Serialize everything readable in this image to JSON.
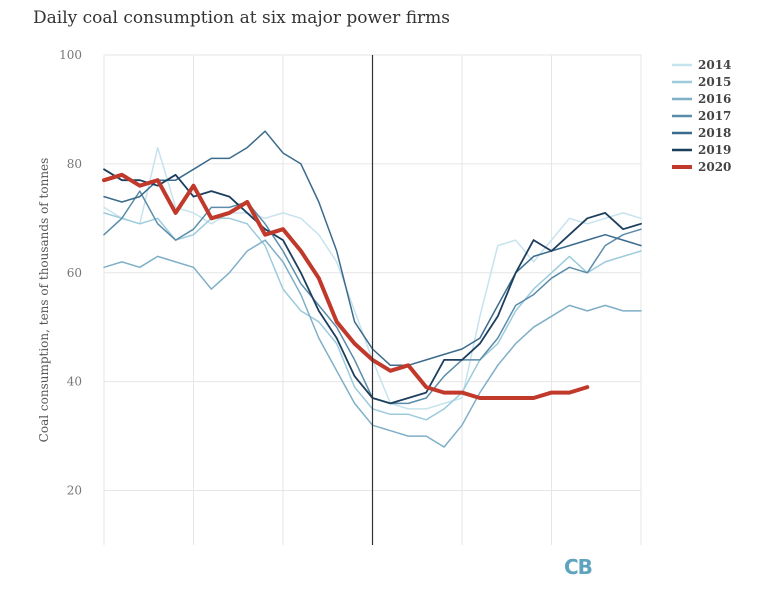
{
  "chart_data": {
    "type": "line",
    "title": "Daily coal consumption at six major power firms",
    "ylabel": "Coal consumption, tens of thousands of tonnes",
    "xlabel": "",
    "ylim": [
      10,
      100
    ],
    "yticks": [
      20,
      40,
      60,
      80,
      100
    ],
    "grid": true,
    "legend_position": "right",
    "xlim": [
      0,
      60
    ],
    "vertical_marker_x": 30,
    "series": [
      {
        "name": "2014",
        "color": "#c7e3ee",
        "width": 1.5,
        "x": [
          0,
          2,
          4,
          6,
          8,
          10,
          12,
          14,
          16,
          18,
          20,
          22,
          24,
          26,
          28,
          30,
          32,
          34,
          36,
          38,
          40,
          42,
          44,
          46,
          48,
          50,
          52,
          54,
          56,
          58,
          60
        ],
        "y": [
          72,
          70,
          69,
          83,
          72,
          71,
          69,
          71,
          71,
          70,
          71,
          70,
          67,
          62,
          53,
          44,
          36,
          35,
          35,
          36,
          37,
          52,
          65,
          66,
          62,
          66,
          70,
          69,
          70,
          71,
          70
        ]
      },
      {
        "name": "2015",
        "color": "#9ccbdc",
        "width": 1.5,
        "x": [
          0,
          2,
          4,
          6,
          8,
          10,
          12,
          14,
          16,
          18,
          20,
          22,
          24,
          26,
          28,
          30,
          32,
          34,
          36,
          38,
          40,
          42,
          44,
          46,
          48,
          50,
          52,
          54,
          56,
          58,
          60
        ],
        "y": [
          71,
          70,
          69,
          70,
          66,
          67,
          70,
          70,
          69,
          65,
          57,
          53,
          51,
          47,
          39,
          35,
          34,
          34,
          33,
          35,
          38,
          44,
          47,
          53,
          57,
          60,
          63,
          60,
          62,
          63,
          64
        ]
      },
      {
        "name": "2016",
        "color": "#7fafc7",
        "width": 1.5,
        "x": [
          0,
          2,
          4,
          6,
          8,
          10,
          12,
          14,
          16,
          18,
          20,
          22,
          24,
          26,
          28,
          30,
          32,
          34,
          36,
          38,
          40,
          42,
          44,
          46,
          48,
          50,
          52,
          54,
          56,
          58,
          60
        ],
        "y": [
          61,
          62,
          61,
          63,
          62,
          61,
          57,
          60,
          64,
          66,
          62,
          56,
          48,
          42,
          36,
          32,
          31,
          30,
          30,
          28,
          32,
          38,
          43,
          47,
          50,
          52,
          54,
          53,
          54,
          53,
          53
        ]
      },
      {
        "name": "2017",
        "color": "#5b8ca9",
        "width": 1.5,
        "x": [
          0,
          2,
          4,
          6,
          8,
          10,
          12,
          14,
          16,
          18,
          20,
          22,
          24,
          26,
          28,
          30,
          32,
          34,
          36,
          38,
          40,
          42,
          44,
          46,
          48,
          50,
          52,
          54,
          56,
          58,
          60
        ],
        "y": [
          67,
          70,
          75,
          69,
          66,
          68,
          72,
          72,
          73,
          69,
          64,
          58,
          54,
          50,
          44,
          37,
          36,
          36,
          37,
          41,
          44,
          44,
          48,
          54,
          56,
          59,
          61,
          60,
          65,
          67,
          68
        ]
      },
      {
        "name": "2018",
        "color": "#3b6b8c",
        "width": 1.5,
        "x": [
          0,
          2,
          4,
          6,
          8,
          10,
          12,
          14,
          16,
          18,
          20,
          22,
          24,
          26,
          28,
          30,
          32,
          34,
          36,
          38,
          40,
          42,
          44,
          46,
          48,
          50,
          52,
          54,
          56,
          58,
          60
        ],
        "y": [
          74,
          73,
          74,
          77,
          77,
          79,
          81,
          81,
          83,
          86,
          82,
          80,
          73,
          64,
          51,
          46,
          43,
          43,
          44,
          45,
          46,
          48,
          54,
          60,
          63,
          64,
          65,
          66,
          67,
          66,
          65
        ]
      },
      {
        "name": "2019",
        "color": "#1d3f5e",
        "width": 1.8,
        "x": [
          0,
          2,
          4,
          6,
          8,
          10,
          12,
          14,
          16,
          18,
          20,
          22,
          24,
          26,
          28,
          30,
          32,
          34,
          36,
          38,
          40,
          42,
          44,
          46,
          48,
          50,
          52,
          54,
          56,
          58,
          60
        ],
        "y": [
          79,
          77,
          77,
          76,
          78,
          74,
          75,
          74,
          71,
          68,
          66,
          60,
          53,
          48,
          41,
          37,
          36,
          37,
          38,
          44,
          44,
          47,
          52,
          60,
          66,
          64,
          67,
          70,
          71,
          68,
          69
        ]
      },
      {
        "name": "2020",
        "color": "#c0392b",
        "width": 4,
        "x": [
          0,
          2,
          4,
          6,
          8,
          10,
          12,
          14,
          16,
          18,
          20,
          22,
          24,
          26,
          28,
          30,
          32,
          34,
          36,
          38,
          40,
          42,
          44,
          46,
          48,
          50,
          52,
          54
        ],
        "y": [
          77,
          78,
          76,
          77,
          71,
          76,
          70,
          71,
          73,
          67,
          68,
          64,
          59,
          51,
          47,
          44,
          42,
          43,
          39,
          38,
          38,
          37,
          37,
          37,
          37,
          38,
          38,
          39
        ]
      }
    ]
  },
  "logo_text": "CB"
}
